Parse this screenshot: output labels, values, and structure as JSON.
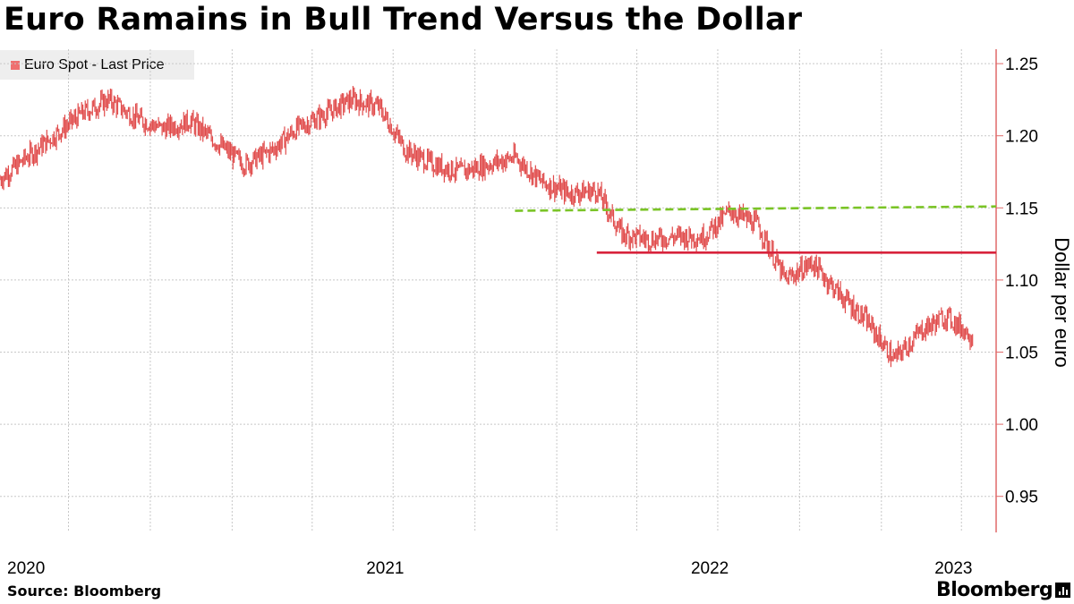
{
  "title": "Euro Ramains in Bull Trend Versus the Dollar",
  "source": "Source: Bloomberg",
  "brand": "Bloomberg",
  "brand_icon": "bloomberg-bars-icon",
  "colors": {
    "series": "#e04a4a",
    "resistance_green": "#7ac426",
    "resistance_red": "#d8233c",
    "axis": "#e06a6a",
    "grid": "#c8c8c8"
  },
  "chart_data": {
    "type": "line",
    "title": "Euro Ramains in Bull Trend Versus the Dollar",
    "ylabel": "Dollar per euro",
    "y_axis_side": "right",
    "ylim": [
      0.925,
      1.26
    ],
    "yticks": [
      0.95,
      1.0,
      1.05,
      1.1,
      1.15,
      1.2,
      1.25
    ],
    "ytick_labels": [
      "0.95",
      "1.00",
      "1.05",
      "1.10",
      "1.15",
      "1.20",
      "1.25"
    ],
    "xlim": [
      "2020-04-15",
      "2023-05-10"
    ],
    "xtick_labels": [
      {
        "label": "2020",
        "date": "2020-07-01"
      },
      {
        "label": "2021",
        "date": "2021-07-01"
      },
      {
        "label": "2022",
        "date": "2022-07-01"
      },
      {
        "label": "2023",
        "date": "2023-04-01"
      }
    ],
    "grid": true,
    "legend": {
      "position": "top-left",
      "entries": [
        "Euro Spot - Last Price"
      ]
    },
    "series": [
      {
        "name": "Euro Spot - Last Price",
        "x": [
          "2020-04-15",
          "2020-05-15",
          "2020-06-15",
          "2020-07-15",
          "2020-08-15",
          "2020-09-15",
          "2020-10-15",
          "2020-11-15",
          "2020-12-15",
          "2021-01-15",
          "2021-02-15",
          "2021-03-15",
          "2021-04-15",
          "2021-05-15",
          "2021-06-15",
          "2021-07-15",
          "2021-08-15",
          "2021-09-15",
          "2021-10-15",
          "2021-11-15",
          "2021-12-15",
          "2022-01-15",
          "2022-02-15",
          "2022-03-15",
          "2022-04-15",
          "2022-05-15",
          "2022-06-15",
          "2022-07-15",
          "2022-08-15",
          "2022-09-15",
          "2022-10-15",
          "2022-11-15",
          "2022-12-15",
          "2023-01-15",
          "2023-02-15",
          "2023-03-15",
          "2023-04-15"
        ],
        "values": [
          1.17,
          1.185,
          1.2,
          1.215,
          1.225,
          1.212,
          1.205,
          1.21,
          1.195,
          1.18,
          1.19,
          1.205,
          1.215,
          1.225,
          1.22,
          1.19,
          1.18,
          1.175,
          1.18,
          1.185,
          1.168,
          1.16,
          1.162,
          1.132,
          1.128,
          1.13,
          1.13,
          1.148,
          1.138,
          1.1,
          1.112,
          1.09,
          1.072,
          1.045,
          1.065,
          1.075,
          1.06
        ]
      }
    ],
    "annotations": [
      {
        "type": "hline",
        "color": "green",
        "style": "dashed",
        "y_start": 1.148,
        "y_end": 1.151,
        "x_start": "2021-11-15",
        "x_end": "2023-05-10"
      },
      {
        "type": "hline",
        "color": "red",
        "style": "solid",
        "y": 1.119,
        "x_start": "2022-02-15",
        "x_end": "2023-05-10"
      }
    ]
  }
}
